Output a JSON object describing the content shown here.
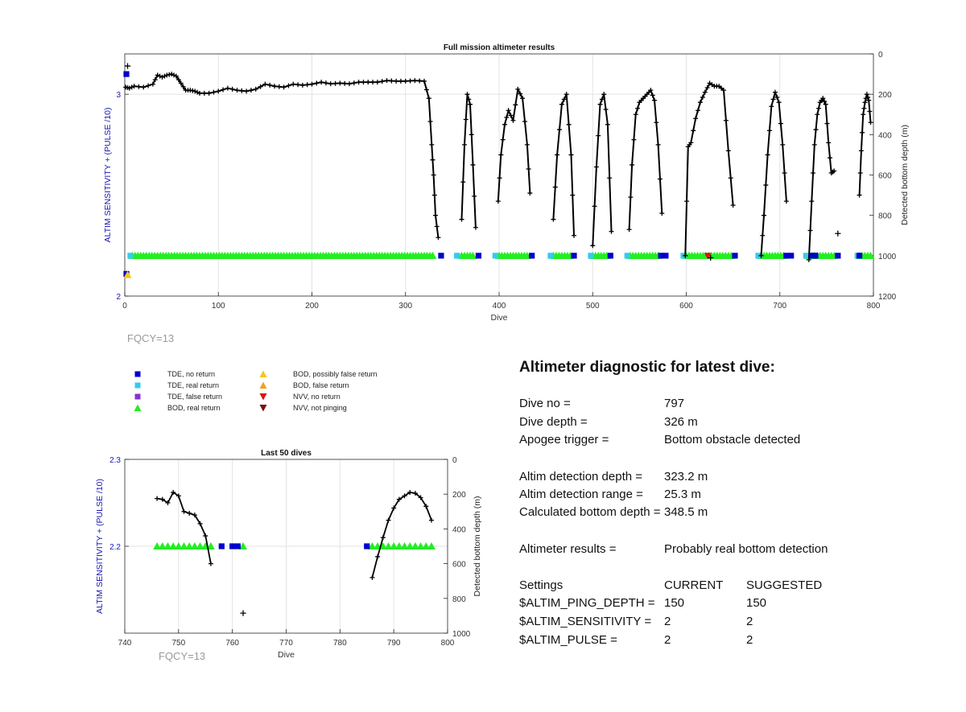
{
  "colors": {
    "axis_blue": "#1a1ab4",
    "tde_no_return": "#0000cc",
    "tde_real_return": "#33ccee",
    "tde_false_return": "#8833cc",
    "bod_real_return": "#22ee22",
    "bod_possibly_false": "#f5c518",
    "bod_false": "#f0a020",
    "nvv_no_return": "#dd1111",
    "nvv_not_pinging": "#7a1010",
    "depth_line": "#000000"
  },
  "chart_data": [
    {
      "type": "scatter",
      "title": "Full mission altimeter results",
      "xlabel": "Dive",
      "ylabel_left": "ALTIM SENSITIVITY + (PULSE /10)",
      "ylabel_right": "Detected bottom depth (m)",
      "xlim": [
        0,
        800
      ],
      "ylim_left": [
        2,
        3.2
      ],
      "ylim_right": [
        0,
        1200
      ],
      "right_axis_reversed": true,
      "x_ticks": [
        "0",
        "100",
        "200",
        "300",
        "400",
        "500",
        "600",
        "700",
        "800"
      ],
      "y_left_ticks": [
        "2",
        "3"
      ],
      "y_right_ticks": [
        "0",
        "200",
        "400",
        "600",
        "800",
        "1000",
        "1200"
      ],
      "grid": true,
      "annotation": "FQCY=13",
      "series": [
        {
          "name": "Detected bottom depth",
          "axis": "right",
          "segments": [
            {
              "x": [
                1,
                5,
                10,
                20,
                30,
                35,
                40,
                45,
                50,
                55,
                60,
                65,
                70,
                75,
                80,
                90,
                100,
                110,
                120,
                130,
                140,
                150,
                160,
                170,
                180,
                190,
                200,
                210,
                220,
                230,
                240,
                250,
                260,
                270,
                280,
                290,
                300,
                310,
                320,
                325,
                328,
                330,
                332,
                335
              ],
              "y": [
                165,
                170,
                160,
                165,
                150,
                105,
                115,
                105,
                100,
                110,
                145,
                180,
                180,
                185,
                195,
                195,
                185,
                170,
                180,
                185,
                175,
                150,
                160,
                165,
                150,
                155,
                150,
                140,
                148,
                145,
                148,
                140,
                140,
                140,
                132,
                135,
                135,
                132,
                135,
                220,
                450,
                600,
                800,
                910
              ]
            },
            {
              "x": [
                360,
                363,
                366,
                369,
                372,
                375
              ],
              "y": [
                820,
                450,
                200,
                250,
                550,
                860
              ]
            },
            {
              "x": [
                399,
                402,
                406,
                410,
                415,
                420,
                425,
                430,
                433
              ],
              "y": [
                730,
                500,
                350,
                280,
                330,
                175,
                220,
                450,
                690
              ]
            },
            {
              "x": [
                458,
                462,
                467,
                472,
                477,
                480
              ],
              "y": [
                820,
                500,
                250,
                200,
                500,
                900
              ]
            },
            {
              "x": [
                500,
                504,
                508,
                512,
                516,
                520
              ],
              "y": [
                950,
                560,
                250,
                200,
                350,
                880
              ]
            },
            {
              "x": [
                539,
                542,
                546,
                550,
                554,
                558,
                562,
                566,
                570,
                574
              ],
              "y": [
                870,
                550,
                300,
                240,
                220,
                200,
                180,
                230,
                450,
                790
              ]
            },
            {
              "x": [
                599,
                602,
                605,
                610,
                615,
                620,
                625,
                630,
                635,
                640,
                645,
                650
              ],
              "y": [
                1000,
                460,
                440,
                320,
                240,
                190,
                145,
                160,
                160,
                180,
                480,
                750
              ]
            },
            {
              "x": [
                680,
                683,
                687,
                691,
                695,
                699,
                703,
                707
              ],
              "y": [
                1000,
                800,
                500,
                260,
                190,
                240,
                450,
                730
              ]
            },
            {
              "x": [
                731,
                734,
                737,
                740,
                743,
                746,
                749,
                752,
                755,
                758
              ],
              "y": [
                1020,
                730,
                450,
                300,
                240,
                220,
                250,
                440,
                590,
                580
              ]
            },
            {
              "x": [
                785,
                787,
                789,
                791,
                793,
                795,
                797
              ],
              "y": [
                700,
                480,
                300,
                240,
                200,
                230,
                340
              ]
            }
          ],
          "isolated_points": [
            [
              3,
              60
            ],
            [
              762,
              890
            ],
            [
              626,
              1010
            ]
          ]
        },
        {
          "name": "BOD, real return",
          "axis": "left",
          "y": 2.2,
          "ranges": [
            [
              8,
              330
            ],
            [
              360,
              372
            ],
            [
              400,
              430
            ],
            [
              458,
              476
            ],
            [
              500,
              517
            ],
            [
              540,
              572
            ],
            [
              600,
              650
            ],
            [
              680,
              704
            ],
            [
              731,
              758
            ],
            [
              785,
              797
            ]
          ]
        },
        {
          "name": "TDE, no return",
          "axis": "left",
          "y": 2.2,
          "x": [
            338,
            378,
            435,
            480,
            519,
            573,
            578,
            652,
            707,
            712,
            735,
            738,
            762,
            785
          ],
          "isolated": [
            [
              0,
              3.1
            ],
            [
              0,
              2.11
            ]
          ]
        },
        {
          "name": "TDE, real return",
          "axis": "left",
          "y": 2.2,
          "x": [
            6,
            355,
            396,
            455,
            498,
            537,
            597,
            677,
            728,
            783
          ]
        },
        {
          "name": "BOD, possibly false return",
          "axis": "left",
          "isolated": [
            [
              3,
              2.105
            ]
          ]
        },
        {
          "name": "NVV, no return",
          "axis": "left",
          "isolated": [
            [
              623,
              2.2
            ]
          ]
        }
      ]
    },
    {
      "type": "scatter",
      "title": "Last 50 dives",
      "xlabel": "Dive",
      "ylabel_left": "ALTIM SENSITIVITY + (PULSE /10)",
      "ylabel_right": "Detected bottom depth (m)",
      "xlim": [
        740,
        800
      ],
      "ylim_left": [
        2.1,
        2.3
      ],
      "ylim_right": [
        0,
        1000
      ],
      "right_axis_reversed": true,
      "x_ticks": [
        "740",
        "750",
        "760",
        "770",
        "780",
        "790",
        "800"
      ],
      "y_left_ticks": [
        "2.2",
        "2.3"
      ],
      "y_right_ticks": [
        "0",
        "200",
        "400",
        "600",
        "800",
        "1000"
      ],
      "grid": true,
      "annotation": "FQCY=13",
      "series": [
        {
          "name": "Detected bottom depth",
          "axis": "right",
          "segments": [
            {
              "x": [
                746,
                747,
                748,
                749,
                750,
                751,
                752,
                753,
                754,
                755,
                756
              ],
              "y": [
                225,
                230,
                250,
                190,
                210,
                300,
                310,
                320,
                370,
                440,
                600
              ]
            },
            {
              "x": [
                786,
                787,
                788,
                789,
                790,
                791,
                792,
                793,
                794,
                795,
                796,
                797
              ],
              "y": [
                680,
                560,
                450,
                350,
                280,
                230,
                210,
                190,
                195,
                220,
                270,
                350
              ]
            }
          ],
          "isolated_points": [
            [
              762,
              885
            ]
          ]
        },
        {
          "name": "BOD, real return",
          "axis": "left",
          "y": 2.2,
          "x": [
            746,
            747,
            748,
            749,
            750,
            751,
            752,
            753,
            754,
            755,
            756,
            762,
            786,
            787,
            788,
            789,
            790,
            791,
            792,
            793,
            794,
            795,
            796,
            797
          ]
        },
        {
          "name": "TDE, no return",
          "axis": "left",
          "y": 2.2,
          "x": [
            758,
            760,
            761,
            785
          ]
        }
      ]
    }
  ],
  "legend": {
    "items": [
      {
        "label": "TDE, no return",
        "shape": "square",
        "color": "#0000cc"
      },
      {
        "label": "TDE, real return",
        "shape": "square",
        "color": "#33ccee"
      },
      {
        "label": "TDE, false return",
        "shape": "square",
        "color": "#8833cc"
      },
      {
        "label": "BOD, real return",
        "shape": "triangle-up",
        "color": "#22ee22"
      },
      {
        "label": "BOD, possibly false return",
        "shape": "triangle-up",
        "color": "#f5c518"
      },
      {
        "label": "BOD, false return",
        "shape": "triangle-up",
        "color": "#f0a020"
      },
      {
        "label": "NVV, no return",
        "shape": "triangle-down",
        "color": "#dd1111"
      },
      {
        "label": "NVV, not pinging",
        "shape": "triangle-down",
        "color": "#7a1010"
      }
    ]
  },
  "diagnostic": {
    "title": "Altimeter diagnostic for latest dive:",
    "dive_no_label": "Dive no =",
    "dive_no": "797",
    "dive_depth_label": "Dive depth =",
    "dive_depth": "326 m",
    "apogee_label": "Apogee trigger =",
    "apogee": "Bottom obstacle detected",
    "altim_depth_label": "Altim detection depth =",
    "altim_depth": "323.2 m",
    "altim_range_label": "Altim detection range =",
    "altim_range": "25.3 m",
    "calc_depth_label": "Calculated bottom depth =",
    "calc_depth": "348.5 m",
    "results_label": "Altimeter results =",
    "results": "Probably real bottom detection",
    "settings_label": "Settings",
    "current_label": "CURRENT",
    "suggested_label": "SUGGESTED",
    "settings": [
      {
        "name": "$ALTIM_PING_DEPTH =",
        "current": "150",
        "suggested": "150"
      },
      {
        "name": "$ALTIM_SENSITIVITY =",
        "current": "2",
        "suggested": "2"
      },
      {
        "name": "$ALTIM_PULSE =",
        "current": "2",
        "suggested": "2"
      }
    ]
  }
}
